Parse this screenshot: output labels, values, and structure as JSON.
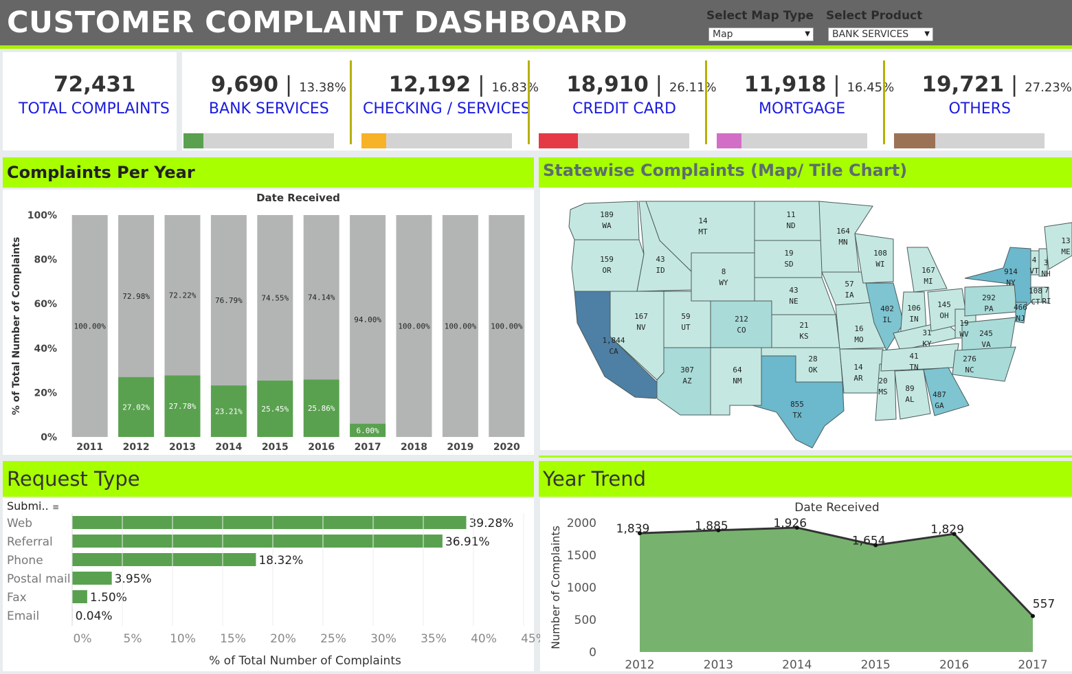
{
  "header": {
    "title": "CUSTOMER COMPLAINT DASHBOARD",
    "map_type_label": "Select Map Type",
    "map_type_value": "Map",
    "product_label": "Select Product",
    "product_value": "BANK SERVICES"
  },
  "kpis": {
    "total": {
      "value": "72,431",
      "label": "TOTAL COMPLAINTS"
    },
    "items": [
      {
        "value": "9,690",
        "pct": "13.38%",
        "label": "BANK SERVICES",
        "share": 0.1338,
        "color": "#59a14f"
      },
      {
        "value": "12,192",
        "pct": "16.83%",
        "label": "CHECKING / SERVICES",
        "share": 0.1683,
        "color": "#f7b228"
      },
      {
        "value": "18,910",
        "pct": "26.11%",
        "label": "CREDIT CARD",
        "share": 0.2611,
        "color": "#e63946"
      },
      {
        "value": "11,918",
        "pct": "16.45%",
        "label": "MORTGAGE",
        "share": 0.1645,
        "color": "#d36ec7"
      },
      {
        "value": "19,721",
        "pct": "27.23%",
        "label": "OTHERS",
        "share": 0.2723,
        "color": "#9c7256"
      }
    ]
  },
  "panels": {
    "per_year_title": "Complaints Per Year",
    "map_title": "Statewise Complaints (Map/ Tile Chart)",
    "request_title": "Request Type",
    "trend_title": "Year Trend"
  },
  "chart_data": [
    {
      "type": "bar",
      "stacked": true,
      "title": "Date Received",
      "ylabel": "% of Total Number of Complaints",
      "ylim": [
        0,
        100
      ],
      "yticks": [
        "0%",
        "20%",
        "40%",
        "60%",
        "80%",
        "100%"
      ],
      "categories": [
        "2011",
        "2012",
        "2013",
        "2014",
        "2015",
        "2016",
        "2017",
        "2018",
        "2019",
        "2020"
      ],
      "series": [
        {
          "values": [
            0,
            27.02,
            27.78,
            23.21,
            25.45,
            25.86,
            6.0,
            0,
            0,
            0
          ],
          "labels": [
            "",
            "27.02%",
            "27.78%",
            "23.21%",
            "25.45%",
            "25.86%",
            "6.00%",
            "",
            "",
            ""
          ],
          "color": "#59a14f"
        },
        {
          "values": [
            100,
            72.98,
            72.22,
            76.79,
            74.55,
            74.14,
            94.0,
            100,
            100,
            100
          ],
          "labels": [
            "100.00%",
            "72.98%",
            "72.22%",
            "76.79%",
            "74.55%",
            "74.14%",
            "94.00%",
            "100.00%",
            "100.00%",
            "100.00%"
          ],
          "color": "#b3b5b5"
        }
      ],
      "grid": false
    },
    {
      "type": "map",
      "states": [
        {
          "abbr": "WA",
          "value": "189"
        },
        {
          "abbr": "OR",
          "value": "159"
        },
        {
          "abbr": "CA",
          "value": "1,844"
        },
        {
          "abbr": "ID",
          "value": "43"
        },
        {
          "abbr": "NV",
          "value": "167"
        },
        {
          "abbr": "MT",
          "value": "14"
        },
        {
          "abbr": "WY",
          "value": "8"
        },
        {
          "abbr": "UT",
          "value": "59"
        },
        {
          "abbr": "AZ",
          "value": "307"
        },
        {
          "abbr": "CO",
          "value": "212"
        },
        {
          "abbr": "NM",
          "value": "64"
        },
        {
          "abbr": "ND",
          "value": "11"
        },
        {
          "abbr": "SD",
          "value": "19"
        },
        {
          "abbr": "NE",
          "value": "43"
        },
        {
          "abbr": "KS",
          "value": "21"
        },
        {
          "abbr": "OK",
          "value": "28"
        },
        {
          "abbr": "TX",
          "value": "855"
        },
        {
          "abbr": "MN",
          "value": "164"
        },
        {
          "abbr": "IA",
          "value": "57"
        },
        {
          "abbr": "MO",
          "value": "16"
        },
        {
          "abbr": "AR",
          "value": "14"
        },
        {
          "abbr": "WI",
          "value": "108"
        },
        {
          "abbr": "IL",
          "value": "402"
        },
        {
          "abbr": "MS",
          "value": "20"
        },
        {
          "abbr": "MI",
          "value": "167"
        },
        {
          "abbr": "IN",
          "value": "106"
        },
        {
          "abbr": "KY",
          "value": "31"
        },
        {
          "abbr": "TN",
          "value": "41"
        },
        {
          "abbr": "AL",
          "value": "89"
        },
        {
          "abbr": "OH",
          "value": "145"
        },
        {
          "abbr": "WV",
          "value": "19"
        },
        {
          "abbr": "GA",
          "value": "487"
        },
        {
          "abbr": "PA",
          "value": "292"
        },
        {
          "abbr": "VA",
          "value": "245"
        },
        {
          "abbr": "NC",
          "value": "276"
        },
        {
          "abbr": "NY",
          "value": "914"
        },
        {
          "abbr": "NJ",
          "value": "466"
        },
        {
          "abbr": "VT",
          "value": "4"
        },
        {
          "abbr": "NH",
          "value": "3"
        },
        {
          "abbr": "ME",
          "value": "13"
        },
        {
          "abbr": "CT",
          "value": "108"
        },
        {
          "abbr": "RI",
          "value": "7"
        }
      ]
    },
    {
      "type": "bar",
      "orientation": "horizontal",
      "field_header": "Submi..",
      "xlabel": "% of Total Number of Complaints",
      "xlim": [
        0,
        45
      ],
      "xticks": [
        "0%",
        "5%",
        "10%",
        "15%",
        "20%",
        "25%",
        "30%",
        "35%",
        "40%",
        "45%"
      ],
      "categories": [
        "Web",
        "Referral",
        "Phone",
        "Postal mail",
        "Fax",
        "Email"
      ],
      "values": [
        39.28,
        36.91,
        18.32,
        3.95,
        1.5,
        0.04
      ],
      "labels": [
        "39.28%",
        "36.91%",
        "18.32%",
        "3.95%",
        "1.50%",
        "0.04%"
      ],
      "color": "#59a14f"
    },
    {
      "type": "area",
      "title": "Date Received",
      "ylabel": "Number of Complaints",
      "ylim": [
        0,
        2000
      ],
      "yticks": [
        "0",
        "500",
        "1000",
        "1500",
        "2000"
      ],
      "x": [
        "2012",
        "2013",
        "2014",
        "2015",
        "2016",
        "2017"
      ],
      "values": [
        1839,
        1885,
        1926,
        1654,
        1829,
        557
      ],
      "labels": [
        "1,839",
        "1,885",
        "1,926",
        "1,654",
        "1,829",
        "557"
      ],
      "color": "#77b36e"
    }
  ]
}
